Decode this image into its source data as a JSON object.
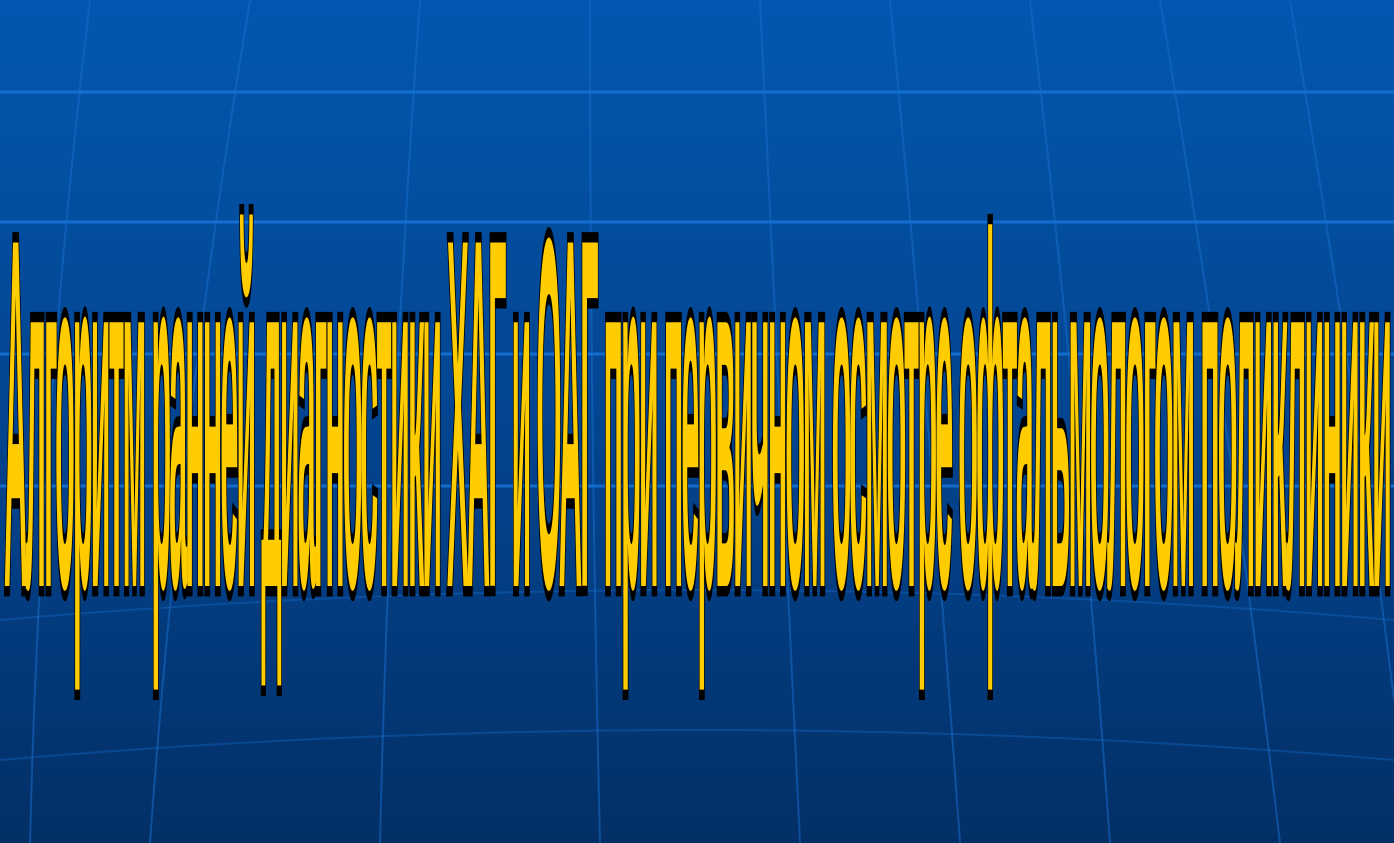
{
  "slide": {
    "title": "Алгоритм ранней диагностики ХАГ и ОАГ при первичном осмотре офтальмологом поликлиники",
    "colors": {
      "background_top": "#0357b0",
      "background_bottom": "#032f66",
      "grid_line": "#1a7ae0",
      "title_fill": "#ffcc00",
      "title_accent": "#ff7a00",
      "title_outline": "#000000"
    }
  }
}
